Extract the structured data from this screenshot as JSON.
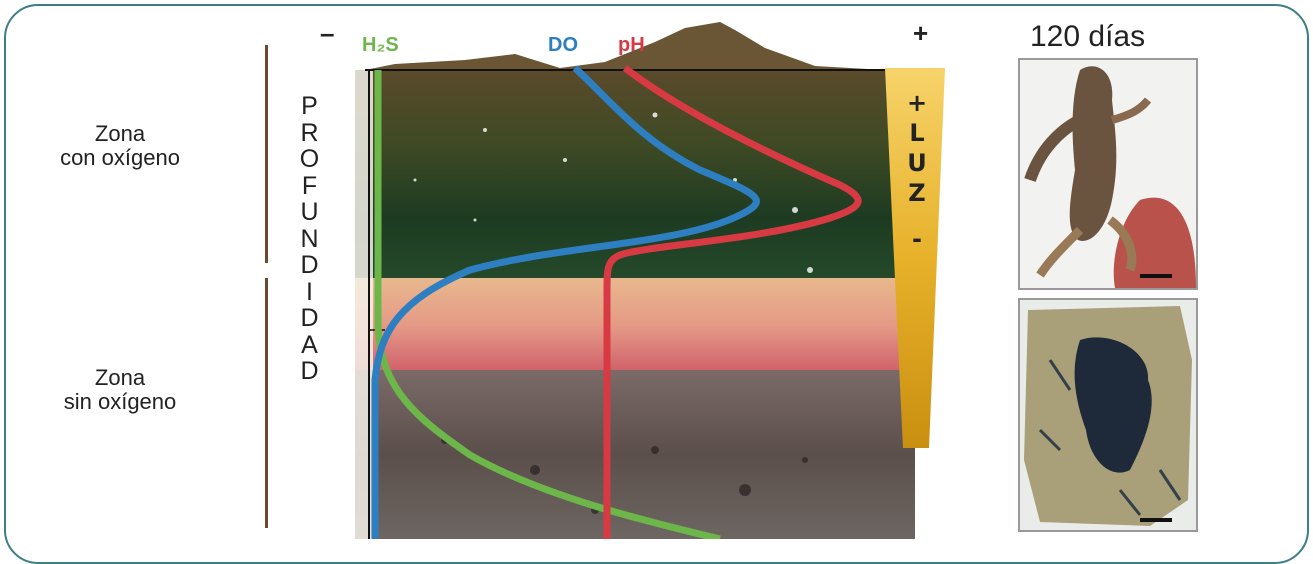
{
  "zones": {
    "oxygen": [
      "Zona",
      "con oxígeno"
    ],
    "no_oxygen": [
      "Zona",
      "sin oxígeno"
    ]
  },
  "depth_letters": [
    "P",
    "R",
    "O",
    "F",
    "U",
    "N",
    "D",
    "I",
    "D",
    "A",
    "D"
  ],
  "axis": {
    "minus": "–",
    "plus": "+",
    "h2s": "H₂S",
    "do": "DO",
    "ph": "pH"
  },
  "luz_letters": [
    "+",
    "L",
    "U",
    "Z",
    "-"
  ],
  "days_label": "120 días",
  "colors": {
    "h2s": "#6cb64a",
    "do": "#2e7fc2",
    "ph": "#d83a44",
    "frame": "#3d7e86",
    "luz": "#e9b22a"
  }
}
